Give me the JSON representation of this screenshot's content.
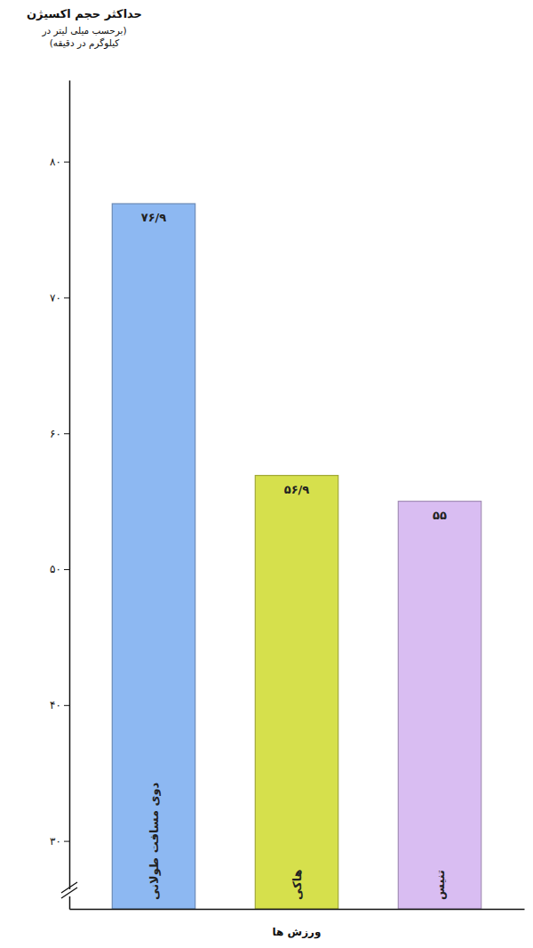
{
  "chart_data": {
    "type": "bar",
    "y_label": [
      "حداکثر حجم اکسیژن",
      "(برحسب میلی لیتر در",
      "کیلوگرم در دقیقه)"
    ],
    "x_label": "ورزش ها",
    "categories": [
      "دوی مسافت طولانی",
      "هاکی",
      "تنیس"
    ],
    "values": [
      76.9,
      56.9,
      55
    ],
    "value_labels": [
      "۷۶/۹",
      "۵۶/۹",
      "۵۵"
    ],
    "colors": [
      "#8db8f2",
      "#d6e04c",
      "#d9bdf2"
    ],
    "ylim": [
      25,
      86
    ],
    "yticks": [
      {
        "value": 30,
        "label": "۳۰"
      },
      {
        "value": 40,
        "label": "۴۰"
      },
      {
        "value": 50,
        "label": "۵۰"
      },
      {
        "value": 60,
        "label": "۶۰"
      },
      {
        "value": 70,
        "label": "۷۰"
      },
      {
        "value": 80,
        "label": "۸۰"
      }
    ],
    "data_labels": true,
    "grid": false
  }
}
